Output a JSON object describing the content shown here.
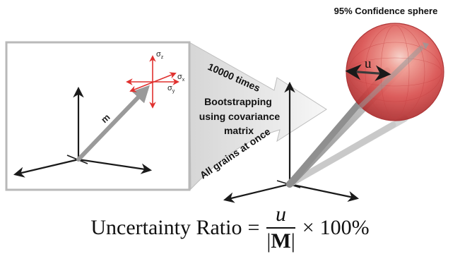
{
  "sphere_title": "95% Confidence sphere",
  "sphere_vector_label": "u",
  "arrow_labels": {
    "times": "10000 times",
    "bootstrap_line1": "Bootstrapping",
    "bootstrap_line2": "using covariance",
    "bootstrap_line3": "matrix",
    "grains": "All grains at once"
  },
  "left_panel": {
    "vector_label": "m",
    "sigma_symbol": "σ",
    "sigma_x": "x",
    "sigma_y": "y",
    "sigma_z": "z"
  },
  "formula": {
    "lhs": "Uncertainty Ratio",
    "equals": "=",
    "numerator": "u",
    "den_open": "|",
    "den_bold": "M",
    "den_close": "|",
    "times": "×",
    "value": "100%"
  },
  "colors": {
    "sphere": "#d9504f",
    "sphere_dark": "#a8282a",
    "error_arrows": "#e0312f",
    "panel_border": "#b9b9b9",
    "bubble_fill": "#e3e3e3",
    "vector": "#9a9a9a"
  }
}
